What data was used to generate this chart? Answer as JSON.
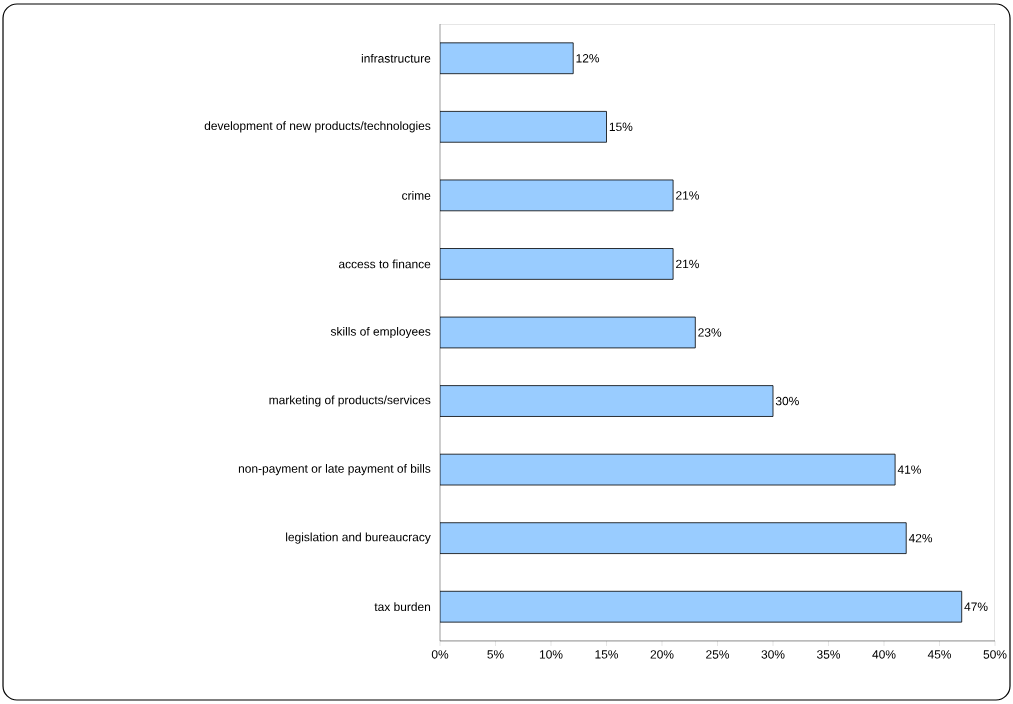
{
  "chart_data": {
    "type": "bar",
    "orientation": "horizontal",
    "categories": [
      "infrastructure",
      "development of new products/technologies",
      "crime",
      "access to finance",
      "skills of employees",
      "marketing of products/services",
      "non-payment or late payment of bills",
      "legislation and bureaucracy",
      "tax burden"
    ],
    "values": [
      12,
      15,
      21,
      21,
      23,
      30,
      41,
      42,
      47
    ],
    "value_labels": [
      "12%",
      "15%",
      "21%",
      "21%",
      "23%",
      "30%",
      "41%",
      "42%",
      "47%"
    ],
    "color": "#99ccff",
    "xlim": [
      0,
      50
    ],
    "xticks": [
      {
        "value": 0,
        "label": "0%"
      },
      {
        "value": 5,
        "label": "5%"
      },
      {
        "value": 10,
        "label": "10%"
      },
      {
        "value": 15,
        "label": "15%"
      },
      {
        "value": 20,
        "label": "20%"
      },
      {
        "value": 25,
        "label": "25%"
      },
      {
        "value": 30,
        "label": "30%"
      },
      {
        "value": 35,
        "label": "35%"
      },
      {
        "value": 40,
        "label": "40%"
      },
      {
        "value": 45,
        "label": "45%"
      },
      {
        "value": 50,
        "label": "50%"
      }
    ],
    "grid": false
  }
}
